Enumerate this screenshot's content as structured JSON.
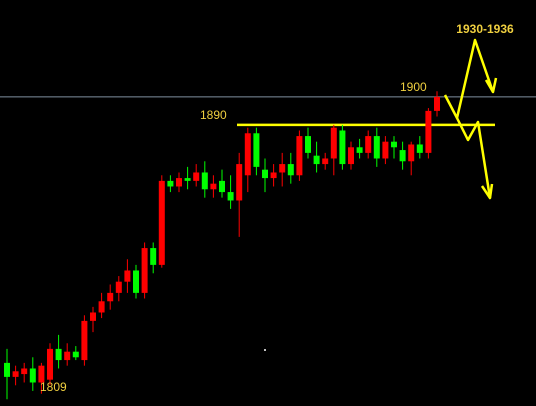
{
  "chart_data": {
    "type": "candlestick",
    "target_label": "1930-1936",
    "low_label": 1809,
    "levels": [
      {
        "value": 1900,
        "color": "#8090a0"
      },
      {
        "value": 1890,
        "color": "#ffff00"
      }
    ],
    "up_color": "#ff0000",
    "down_color": "#00ff00",
    "ylim": [
      1789.6,
      1934.6
    ],
    "categories": [
      null,
      null,
      null,
      null,
      null,
      null,
      null,
      null,
      null,
      null,
      null,
      null,
      null,
      null,
      null,
      null,
      null,
      null,
      null,
      null,
      null,
      null,
      null,
      null,
      null,
      null,
      null,
      null,
      null,
      null,
      null,
      null,
      null,
      null,
      null,
      null,
      null,
      null,
      null,
      null,
      null,
      null,
      null,
      null,
      null,
      null,
      null,
      null,
      null,
      null,
      null
    ],
    "open": [
      1805,
      1800,
      1801,
      1803,
      1798,
      1799,
      1810,
      1806,
      1809,
      1806,
      1820,
      1823,
      1827,
      1830,
      1834,
      1838,
      1830,
      1846,
      1840,
      1870,
      1868,
      1871,
      1870,
      1873,
      1867,
      1870,
      1866,
      1863,
      1872,
      1887,
      1874,
      1871,
      1873,
      1876,
      1872,
      1886,
      1879,
      1876,
      1878,
      1888,
      1876,
      1882,
      1880,
      1886,
      1878,
      1884,
      1881,
      1877,
      1883,
      1880,
      1895
    ],
    "high": [
      1810,
      1804,
      1805,
      1807,
      1805,
      1812,
      1815,
      1812,
      1811,
      1822,
      1825,
      1830,
      1833,
      1836,
      1842,
      1840,
      1848,
      1848,
      1872,
      1872,
      1873,
      1875,
      1876,
      1877,
      1872,
      1874,
      1872,
      1880,
      1889,
      1889,
      1878,
      1876,
      1880,
      1880,
      1888,
      1889,
      1884,
      1880,
      1890,
      1890,
      1884,
      1885,
      1888,
      1889,
      1886,
      1886,
      1884,
      1884,
      1886,
      1896,
      1902
    ],
    "low": [
      1792,
      1797,
      1798,
      1795,
      1794,
      1797,
      1803,
      1804,
      1806,
      1804,
      1816,
      1821,
      1824,
      1827,
      1830,
      1828,
      1828,
      1837,
      1839,
      1866,
      1866,
      1867,
      1868,
      1864,
      1864,
      1864,
      1860,
      1850,
      1866,
      1872,
      1866,
      1868,
      1868,
      1869,
      1870,
      1878,
      1873,
      1874,
      1872,
      1874,
      1874,
      1878,
      1878,
      1875,
      1876,
      1878,
      1874,
      1872,
      1878,
      1878,
      1893
    ],
    "close": [
      1800,
      1802,
      1803,
      1798,
      1804,
      1810,
      1806,
      1809,
      1807,
      1820,
      1823,
      1827,
      1830,
      1834,
      1838,
      1830,
      1846,
      1840,
      1870,
      1868,
      1871,
      1870,
      1873,
      1867,
      1869,
      1866,
      1863,
      1876,
      1887,
      1875,
      1871,
      1873,
      1876,
      1872,
      1886,
      1880,
      1876,
      1878,
      1889,
      1876,
      1882,
      1880,
      1886,
      1878,
      1884,
      1882,
      1877,
      1883,
      1880,
      1895,
      1900
    ]
  }
}
